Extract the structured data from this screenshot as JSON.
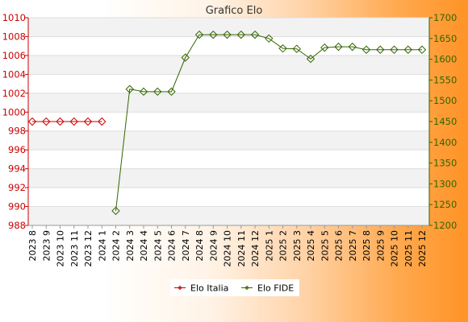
{
  "chart_data": {
    "type": "line",
    "title": "Grafico Elo",
    "categories": [
      "2023 8",
      "2023 9",
      "2023 10",
      "2023 11",
      "2023 12",
      "2024 1",
      "2024 2",
      "2024 3",
      "2024 4",
      "2024 5",
      "2024 6",
      "2024 7",
      "2024 8",
      "2024 9",
      "2024 10",
      "2024 11",
      "2024 12",
      "2025 1",
      "2025 2",
      "2025 3",
      "2025 4",
      "2025 5",
      "2025 6",
      "2025 7",
      "2025 8",
      "2025 9",
      "2025 10",
      "2025 11",
      "2025 12"
    ],
    "y_left": {
      "min": 988,
      "max": 1010,
      "ticks": [
        988,
        990,
        992,
        994,
        996,
        998,
        1000,
        1002,
        1004,
        1006,
        1008,
        1010
      ]
    },
    "y_right": {
      "min": 1200,
      "max": 1700,
      "ticks": [
        1200,
        1250,
        1300,
        1350,
        1400,
        1450,
        1500,
        1550,
        1600,
        1650,
        1700
      ]
    },
    "grid": true,
    "legend_position": "bottom",
    "series": [
      {
        "name": "Elo Italia",
        "axis": "left",
        "color": "#cc0000",
        "values": [
          999,
          999,
          999,
          999,
          999,
          999,
          null,
          null,
          null,
          null,
          null,
          null,
          null,
          null,
          null,
          null,
          null,
          null,
          null,
          null,
          null,
          null,
          null,
          null,
          null,
          null,
          null,
          null,
          null
        ]
      },
      {
        "name": "Elo FIDE",
        "axis": "right",
        "color": "#336600",
        "values": [
          null,
          null,
          null,
          null,
          null,
          null,
          1235,
          1528,
          1522,
          1522,
          1522,
          1604,
          1659,
          1659,
          1659,
          1659,
          1659,
          1650,
          1626,
          1625,
          1601,
          1628,
          1630,
          1630,
          1623,
          1623,
          1623,
          1623,
          1623
        ]
      }
    ]
  }
}
